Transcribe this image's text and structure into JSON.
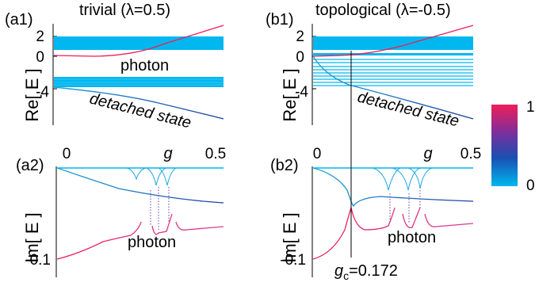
{
  "figure": {
    "titles": {
      "a": "trivial (λ=0.5)",
      "b": "topological (λ=-0.5)"
    },
    "panel_tags": {
      "a1": "(a1)",
      "b1": "(b1)",
      "a2": "(a2)",
      "b2": "(b2)"
    },
    "re_axis_label": "Re[ E ]",
    "im_axis_label": "Im[ E ]",
    "g_symbol": "g",
    "colorbar": {
      "max_label": "1",
      "min_label": "0",
      "colors": [
        "#00b7ef",
        "#1a4fb0",
        "#7a2f9e",
        "#ef1e5a"
      ]
    },
    "annotations": {
      "photon": "photon",
      "detached": "detached state",
      "gc": "g",
      "gc_sub": "c",
      "gc_value": "=0.172"
    }
  },
  "chart_data": [
    {
      "type": "line",
      "panel": "a1",
      "title": "trivial (λ=0.5)",
      "ylabel": "Re[ E ]",
      "yticks": [
        "2",
        "0",
        "-4"
      ],
      "x": [
        0,
        0.1,
        0.2,
        0.3,
        0.4,
        0.5
      ],
      "series": [
        {
          "name": "photon",
          "values": [
            0,
            0.4,
            1.0,
            1.6,
            2.3,
            3.0
          ]
        },
        {
          "name": "detached state",
          "values": [
            -3.9,
            -4.2,
            -4.9,
            -5.7,
            -6.6,
            -7.6
          ]
        }
      ],
      "bands": [
        [
          1.1,
          2.5
        ],
        [
          -3.4,
          -2.6
        ]
      ],
      "ylim": [
        -8,
        3
      ]
    },
    {
      "type": "line",
      "panel": "b1",
      "title": "topological (λ=-0.5)",
      "ylabel": "Re[ E ]",
      "yticks": [
        "2",
        "0",
        "-4"
      ],
      "x": [
        0,
        0.1,
        0.2,
        0.3,
        0.4,
        0.5
      ],
      "series": [
        {
          "name": "photon",
          "values": [
            0,
            0.5,
            1.1,
            1.7,
            2.4,
            3.0
          ]
        },
        {
          "name": "detached state",
          "values": [
            0,
            -3.3,
            -4.6,
            -5.7,
            -6.6,
            -7.6
          ]
        }
      ],
      "bands": [
        [
          1.1,
          2.5
        ],
        [
          -3.4,
          -1.3
        ],
        [
          0.1,
          0.4
        ]
      ],
      "ylim": [
        -8,
        3
      ]
    },
    {
      "type": "line",
      "panel": "a2",
      "ylabel": "Im[ E ]",
      "xticks": [
        "0",
        "g",
        "0.5"
      ],
      "yticks": [
        "-0.1"
      ],
      "x": [
        0,
        0.1,
        0.2,
        0.3,
        0.4,
        0.5
      ],
      "series": [
        {
          "name": "photon",
          "values": [
            -0.1,
            -0.092,
            -0.084,
            -0.078,
            -0.074,
            -0.069
          ]
        },
        {
          "values": [
            0,
            -0.009,
            -0.017,
            -0.023,
            -0.026,
            -0.028
          ]
        }
      ],
      "ylim": [
        -0.1,
        0
      ]
    },
    {
      "type": "line",
      "panel": "b2",
      "ylabel": "Im[ E ]",
      "xticks": [
        "0",
        "g",
        "0.5"
      ],
      "yticks": [
        "-0.1"
      ],
      "x": [
        0,
        0.1,
        0.172,
        0.25,
        0.35,
        0.5
      ],
      "series": [
        {
          "name": "photon",
          "values": [
            -0.1,
            -0.092,
            -0.047,
            -0.076,
            -0.072,
            -0.068
          ]
        },
        {
          "values": [
            0,
            -0.004,
            -0.047,
            -0.023,
            -0.027,
            -0.029
          ]
        }
      ],
      "annotations": [
        "g",
        "c",
        "=0.172"
      ],
      "ylim": [
        -0.1,
        0
      ]
    }
  ]
}
